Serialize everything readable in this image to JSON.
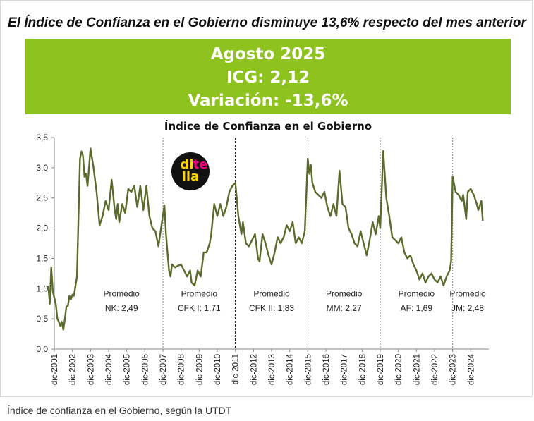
{
  "headline": "El Índice de Confianza en el Gobierno disminuye 13,6% respecto del mes anterior",
  "banner": {
    "lines": [
      "Agosto 2025",
      "ICG: 2,12",
      "Variación: -13,6%"
    ],
    "color": "#8dc21f"
  },
  "caption": "Índice de confianza en el Gobierno, según la UTDT",
  "logo": {
    "lines": [
      "di",
      "te",
      "lla"
    ],
    "colors": {
      "di": "#ffd400",
      "te": "#e6007e",
      "lla": "#ffd400",
      "background": "#111111"
    }
  },
  "chart_data": {
    "type": "line",
    "title": "Índice de Confianza en el Gobierno",
    "xlabel": "",
    "ylabel": "",
    "ylim": [
      0,
      3.5
    ],
    "y_ticks": [
      "0,0",
      "0,5",
      "1,0",
      "1,5",
      "2,0",
      "2,5",
      "3,0",
      "3,5"
    ],
    "x_ticks": [
      "dic-2001",
      "dic-2002",
      "dic-2003",
      "dic-2004",
      "dic-2005",
      "dic-2006",
      "dic-2007",
      "dic-2008",
      "dic-2009",
      "dic-2010",
      "dic-2011",
      "dic-2012",
      "dic-2013",
      "dic-2014",
      "dic-2015",
      "dic-2016",
      "dic-2017",
      "dic-2018",
      "dic-2019",
      "dic-2020",
      "dic-2021",
      "dic-2022",
      "dic-2023",
      "dic-2024"
    ],
    "grid": false,
    "line_color": "#5b6b2c",
    "series": [
      {
        "points": [
          [
            "2001-08",
            1.05
          ],
          [
            "2001-09",
            0.75
          ],
          [
            "2001-10",
            1.35
          ],
          [
            "2001-11",
            0.95
          ],
          [
            "2002-01",
            0.75
          ],
          [
            "2002-02",
            0.5
          ],
          [
            "2002-03",
            0.45
          ],
          [
            "2002-04",
            0.38
          ],
          [
            "2002-05",
            0.45
          ],
          [
            "2002-06",
            0.32
          ],
          [
            "2002-07",
            0.5
          ],
          [
            "2002-08",
            0.7
          ],
          [
            "2002-09",
            0.72
          ],
          [
            "2002-10",
            0.88
          ],
          [
            "2002-11",
            0.82
          ],
          [
            "2002-12",
            0.9
          ],
          [
            "2003-01",
            0.88
          ],
          [
            "2003-03",
            1.2
          ],
          [
            "2003-05",
            3.15
          ],
          [
            "2003-06",
            3.27
          ],
          [
            "2003-07",
            3.2
          ],
          [
            "2003-08",
            2.85
          ],
          [
            "2003-09",
            2.9
          ],
          [
            "2003-10",
            2.7
          ],
          [
            "2003-11",
            3.0
          ],
          [
            "2003-12",
            3.32
          ],
          [
            "2004-02",
            3.0
          ],
          [
            "2004-04",
            2.6
          ],
          [
            "2004-06",
            2.05
          ],
          [
            "2004-08",
            2.2
          ],
          [
            "2004-10",
            2.45
          ],
          [
            "2004-12",
            2.3
          ],
          [
            "2005-02",
            2.8
          ],
          [
            "2005-04",
            2.3
          ],
          [
            "2005-05",
            2.15
          ],
          [
            "2005-06",
            2.4
          ],
          [
            "2005-07",
            2.1
          ],
          [
            "2005-09",
            2.4
          ],
          [
            "2005-11",
            2.25
          ],
          [
            "2006-01",
            2.65
          ],
          [
            "2006-03",
            2.6
          ],
          [
            "2006-05",
            2.7
          ],
          [
            "2006-07",
            2.35
          ],
          [
            "2006-09",
            2.7
          ],
          [
            "2006-11",
            2.3
          ],
          [
            "2007-01",
            2.7
          ],
          [
            "2007-03",
            2.2
          ],
          [
            "2007-05",
            2.0
          ],
          [
            "2007-07",
            1.95
          ],
          [
            "2007-09",
            1.7
          ],
          [
            "2007-11",
            2.05
          ],
          [
            "2008-01",
            2.38
          ],
          [
            "2008-02",
            1.9
          ],
          [
            "2008-04",
            1.3
          ],
          [
            "2008-05",
            1.2
          ],
          [
            "2008-06",
            1.4
          ],
          [
            "2008-08",
            1.35
          ],
          [
            "2008-10",
            1.38
          ],
          [
            "2008-12",
            1.4
          ],
          [
            "2009-02",
            1.3
          ],
          [
            "2009-04",
            1.2
          ],
          [
            "2009-06",
            1.3
          ],
          [
            "2009-07",
            1.1
          ],
          [
            "2009-09",
            1.05
          ],
          [
            "2009-11",
            1.3
          ],
          [
            "2010-01",
            1.2
          ],
          [
            "2010-03",
            1.6
          ],
          [
            "2010-05",
            1.6
          ],
          [
            "2010-07",
            1.75
          ],
          [
            "2010-08",
            1.9
          ],
          [
            "2010-10",
            2.4
          ],
          [
            "2010-12",
            2.2
          ],
          [
            "2011-02",
            2.4
          ],
          [
            "2011-04",
            2.2
          ],
          [
            "2011-06",
            2.35
          ],
          [
            "2011-08",
            2.6
          ],
          [
            "2011-10",
            2.7
          ],
          [
            "2011-12",
            2.75
          ],
          [
            "2012-02",
            2.2
          ],
          [
            "2012-04",
            1.9
          ],
          [
            "2012-05",
            2.1
          ],
          [
            "2012-07",
            1.75
          ],
          [
            "2012-09",
            1.7
          ],
          [
            "2012-11",
            1.8
          ],
          [
            "2013-01",
            1.9
          ],
          [
            "2013-03",
            1.5
          ],
          [
            "2013-04",
            1.45
          ],
          [
            "2013-06",
            1.9
          ],
          [
            "2013-08",
            1.75
          ],
          [
            "2013-10",
            1.55
          ],
          [
            "2013-12",
            1.4
          ],
          [
            "2014-02",
            1.6
          ],
          [
            "2014-04",
            1.85
          ],
          [
            "2014-06",
            1.75
          ],
          [
            "2014-08",
            1.85
          ],
          [
            "2014-10",
            2.05
          ],
          [
            "2014-12",
            1.95
          ],
          [
            "2015-02",
            2.1
          ],
          [
            "2015-04",
            1.75
          ],
          [
            "2015-06",
            1.85
          ],
          [
            "2015-08",
            1.75
          ],
          [
            "2015-10",
            1.95
          ],
          [
            "2015-12",
            3.15
          ],
          [
            "2016-01",
            2.9
          ],
          [
            "2016-02",
            3.05
          ],
          [
            "2016-03",
            2.75
          ],
          [
            "2016-05",
            2.6
          ],
          [
            "2016-07",
            2.55
          ],
          [
            "2016-09",
            2.5
          ],
          [
            "2016-11",
            2.6
          ],
          [
            "2017-01",
            2.35
          ],
          [
            "2017-03",
            2.2
          ],
          [
            "2017-05",
            2.4
          ],
          [
            "2017-07",
            2.2
          ],
          [
            "2017-09",
            2.95
          ],
          [
            "2017-11",
            2.4
          ],
          [
            "2018-01",
            2.35
          ],
          [
            "2018-03",
            2.0
          ],
          [
            "2018-05",
            1.9
          ],
          [
            "2018-07",
            1.75
          ],
          [
            "2018-09",
            1.7
          ],
          [
            "2018-11",
            1.95
          ],
          [
            "2019-01",
            1.75
          ],
          [
            "2019-03",
            1.55
          ],
          [
            "2019-05",
            1.8
          ],
          [
            "2019-07",
            2.1
          ],
          [
            "2019-09",
            1.9
          ],
          [
            "2019-11",
            2.2
          ],
          [
            "2019-12",
            2.0
          ],
          [
            "2020-02",
            3.28
          ],
          [
            "2020-04",
            2.5
          ],
          [
            "2020-06",
            2.2
          ],
          [
            "2020-08",
            1.85
          ],
          [
            "2020-10",
            1.8
          ],
          [
            "2020-12",
            1.75
          ],
          [
            "2021-02",
            1.85
          ],
          [
            "2021-04",
            1.6
          ],
          [
            "2021-06",
            1.5
          ],
          [
            "2021-08",
            1.55
          ],
          [
            "2021-10",
            1.4
          ],
          [
            "2021-12",
            1.3
          ],
          [
            "2022-02",
            1.15
          ],
          [
            "2022-04",
            1.25
          ],
          [
            "2022-06",
            1.1
          ],
          [
            "2022-08",
            1.2
          ],
          [
            "2022-10",
            1.25
          ],
          [
            "2022-12",
            1.15
          ],
          [
            "2023-02",
            1.1
          ],
          [
            "2023-04",
            1.2
          ],
          [
            "2023-06",
            1.05
          ],
          [
            "2023-08",
            1.2
          ],
          [
            "2023-10",
            1.3
          ],
          [
            "2023-11",
            1.45
          ],
          [
            "2023-12",
            2.85
          ],
          [
            "2024-02",
            2.6
          ],
          [
            "2024-04",
            2.55
          ],
          [
            "2024-06",
            2.45
          ],
          [
            "2024-07",
            2.55
          ],
          [
            "2024-09",
            2.15
          ],
          [
            "2024-10",
            2.6
          ],
          [
            "2024-12",
            2.65
          ],
          [
            "2025-02",
            2.55
          ],
          [
            "2025-04",
            2.4
          ],
          [
            "2025-05",
            2.3
          ],
          [
            "2025-07",
            2.45
          ],
          [
            "2025-08",
            2.12
          ]
        ]
      }
    ],
    "periods": [
      {
        "label": "Promedio",
        "value": "NK: 2,49",
        "start": "2003-05",
        "end": "2007-12",
        "boundary_style": "dotted"
      },
      {
        "label": "Promedio",
        "value": "CFK I: 1,71",
        "start": "2007-12",
        "end": "2011-12",
        "boundary_style": "dashed"
      },
      {
        "label": "Promedio",
        "value": "CFK II: 1,83",
        "start": "2011-12",
        "end": "2015-12",
        "boundary_style": "dotted"
      },
      {
        "label": "Promedio",
        "value": "MM: 2,27",
        "start": "2015-12",
        "end": "2019-12",
        "boundary_style": "dotted"
      },
      {
        "label": "Promedio",
        "value": "AF: 1,69",
        "start": "2019-12",
        "end": "2023-12",
        "boundary_style": "dotted"
      },
      {
        "label": "Promedio",
        "value": "JM: 2,48",
        "start": "2023-12",
        "end": "2025-08",
        "boundary_style": "none"
      }
    ]
  }
}
